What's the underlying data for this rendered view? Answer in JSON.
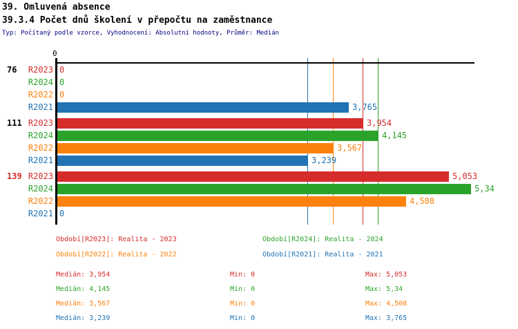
{
  "title_line1": "39. Omluvená absence",
  "title_line2": "39.3.4 Počet dnů školení v přepočtu na zaměstnance",
  "subtitle": "Typ: Počítaný podle vzorce, Vyhodnocení: Absolutní hodnoty, Průměr: Medián",
  "series_colors": {
    "R2023": "#d62b2b",
    "R2024": "#2ba32b",
    "R2022": "#fd810e",
    "R2021": "#2173b4"
  },
  "chart_data": {
    "type": "bar",
    "orientation": "horizontal",
    "title": "39.3.4 Počet dnů školení v přepočtu na zaměstnance",
    "axis": {
      "zero_label": "0",
      "max_value": 5394,
      "grid": false
    },
    "series_order": [
      "R2023",
      "R2024",
      "R2022",
      "R2021"
    ],
    "groups": [
      {
        "label": "76",
        "label_color": "black",
        "bars": [
          {
            "series": "R2023",
            "value": 0,
            "display": "0"
          },
          {
            "series": "R2024",
            "value": 0,
            "display": "0"
          },
          {
            "series": "R2022",
            "value": 0,
            "display": "0"
          },
          {
            "series": "R2021",
            "value": 3765,
            "display": "3,765"
          }
        ]
      },
      {
        "label": "111",
        "label_color": "black",
        "bars": [
          {
            "series": "R2023",
            "value": 3954,
            "display": "3,954"
          },
          {
            "series": "R2024",
            "value": 4145,
            "display": "4,145"
          },
          {
            "series": "R2022",
            "value": 3567,
            "display": "3,567"
          },
          {
            "series": "R2021",
            "value": 3239,
            "display": "3,239"
          }
        ]
      },
      {
        "label": "139",
        "label_color": "red",
        "bars": [
          {
            "series": "R2023",
            "value": 5053,
            "display": "5,053"
          },
          {
            "series": "R2024",
            "value": 5340,
            "display": "5,34"
          },
          {
            "series": "R2022",
            "value": 4508,
            "display": "4,508"
          },
          {
            "series": "R2021",
            "value": 0,
            "display": "0"
          }
        ]
      }
    ],
    "median_lines": [
      {
        "series": "R2021",
        "value": 3239
      },
      {
        "series": "R2022",
        "value": 3567
      },
      {
        "series": "R2023",
        "value": 3954
      },
      {
        "series": "R2024",
        "value": 4145
      }
    ]
  },
  "legend": [
    {
      "series": "R2023",
      "label": "Období[R2023]: Realita - 2023"
    },
    {
      "series": "R2024",
      "label": "Období[R2024]: Realita - 2024"
    },
    {
      "series": "R2022",
      "label": "Období[R2022]: Realita - 2022"
    },
    {
      "series": "R2021",
      "label": "Období[R2021]: Realita - 2021"
    }
  ],
  "stats": [
    {
      "series": "R2023",
      "median": "Medián: 3,954",
      "min": "Min: 0",
      "max": "Max: 5,053"
    },
    {
      "series": "R2024",
      "median": "Medián: 4,145",
      "min": "Min: 0",
      "max": "Max: 5,34"
    },
    {
      "series": "R2022",
      "median": "Medián: 3,567",
      "min": "Min: 0",
      "max": "Max: 4,508"
    },
    {
      "series": "R2021",
      "median": "Medián: 3,239",
      "min": "Min: 0",
      "max": "Max: 3,765"
    }
  ]
}
